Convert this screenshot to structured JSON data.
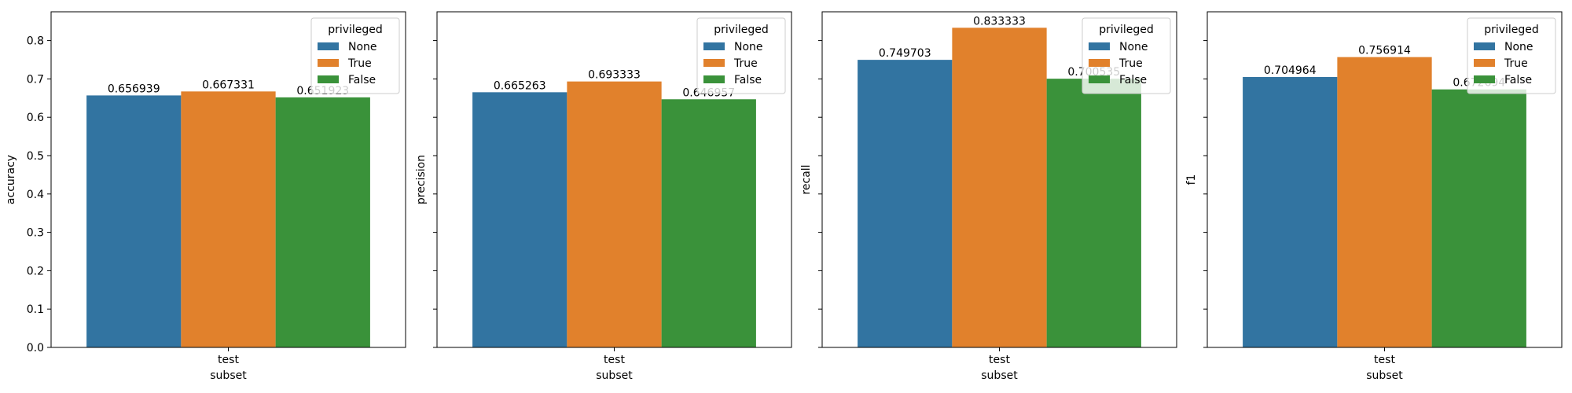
{
  "chart_data": [
    {
      "type": "bar",
      "xlabel": "subset",
      "ylabel": "accuracy",
      "categories": [
        "test"
      ],
      "ylim": [
        0,
        0.875
      ],
      "yticks": [
        "0.0",
        "0.1",
        "0.2",
        "0.3",
        "0.4",
        "0.5",
        "0.6",
        "0.7",
        "0.8"
      ],
      "show_ytick_labels": true,
      "grid": false,
      "legend": {
        "title": "privileged",
        "placement": "top-right"
      },
      "series": [
        {
          "name": "None",
          "values": [
            0.656939
          ],
          "label": "0.656939",
          "color": "#3274a1"
        },
        {
          "name": "True",
          "values": [
            0.667331
          ],
          "label": "0.667331",
          "color": "#e1812c"
        },
        {
          "name": "False",
          "values": [
            0.651923
          ],
          "label": "0.651923",
          "color": "#3a923a"
        }
      ]
    },
    {
      "type": "bar",
      "xlabel": "subset",
      "ylabel": "precision",
      "categories": [
        "test"
      ],
      "ylim": [
        0,
        0.875
      ],
      "yticks": [
        "0.0",
        "0.1",
        "0.2",
        "0.3",
        "0.4",
        "0.5",
        "0.6",
        "0.7",
        "0.8"
      ],
      "show_ytick_labels": false,
      "grid": false,
      "legend": {
        "title": "privileged",
        "placement": "top-right"
      },
      "series": [
        {
          "name": "None",
          "values": [
            0.665263
          ],
          "label": "0.665263",
          "color": "#3274a1"
        },
        {
          "name": "True",
          "values": [
            0.693333
          ],
          "label": "0.693333",
          "color": "#e1812c"
        },
        {
          "name": "False",
          "values": [
            0.646957
          ],
          "label": "0.646957",
          "color": "#3a923a"
        }
      ]
    },
    {
      "type": "bar",
      "xlabel": "subset",
      "ylabel": "recall",
      "categories": [
        "test"
      ],
      "ylim": [
        0,
        0.875
      ],
      "yticks": [
        "0.0",
        "0.1",
        "0.2",
        "0.3",
        "0.4",
        "0.5",
        "0.6",
        "0.7",
        "0.8"
      ],
      "show_ytick_labels": false,
      "grid": false,
      "legend": {
        "title": "privileged",
        "placement": "top-right"
      },
      "series": [
        {
          "name": "None",
          "values": [
            0.749703
          ],
          "label": "0.749703",
          "color": "#3274a1"
        },
        {
          "name": "True",
          "values": [
            0.833333
          ],
          "label": "0.833333",
          "color": "#e1812c"
        },
        {
          "name": "False",
          "values": [
            0.700535
          ],
          "label": "0.700535",
          "color": "#3a923a"
        }
      ]
    },
    {
      "type": "bar",
      "xlabel": "subset",
      "ylabel": "f1",
      "categories": [
        "test"
      ],
      "ylim": [
        0,
        0.875
      ],
      "yticks": [
        "0.0",
        "0.1",
        "0.2",
        "0.3",
        "0.4",
        "0.5",
        "0.6",
        "0.7",
        "0.8"
      ],
      "show_ytick_labels": false,
      "grid": false,
      "legend": {
        "title": "privileged",
        "placement": "top-right"
      },
      "series": [
        {
          "name": "None",
          "values": [
            0.704964
          ],
          "label": "0.704964",
          "color": "#3274a1"
        },
        {
          "name": "True",
          "values": [
            0.756914
          ],
          "label": "0.756914",
          "color": "#e1812c"
        },
        {
          "name": "False",
          "values": [
            0.672694
          ],
          "label": "0.672694",
          "color": "#3a923a"
        }
      ]
    }
  ]
}
